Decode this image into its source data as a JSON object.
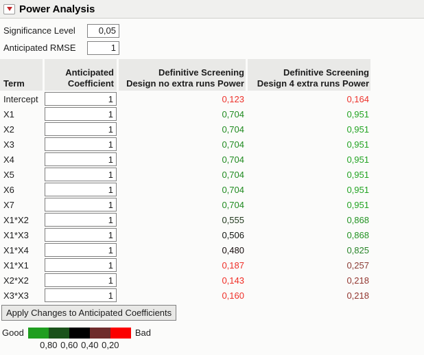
{
  "panel": {
    "title": "Power Analysis",
    "disclosure_icon": "red-triangle-down-icon"
  },
  "controls": {
    "significance": {
      "label": "Significance Level",
      "value": "0,05"
    },
    "rmse": {
      "label": "Anticipated RMSE",
      "value": "1"
    }
  },
  "table": {
    "header": {
      "term": "Term",
      "coef_line1": "Anticipated",
      "coef_line2": "Coefficient",
      "design1_line1": "Definitive Screening",
      "design1_line2": "Design no extra runs Power",
      "design2_line1": "Definitive Screening",
      "design2_line2": "Design 4 extra runs Power"
    },
    "rows": [
      {
        "term": "Intercept",
        "coefficient": "1",
        "power_no_extra": "0,123",
        "power_no_extra_color": "#ed312a",
        "power_4_extra": "0,164",
        "power_4_extra_color": "#ed312a"
      },
      {
        "term": "X1",
        "coefficient": "1",
        "power_no_extra": "0,704",
        "power_no_extra_color": "#1f8a1f",
        "power_4_extra": "0,951",
        "power_4_extra_color": "#21a321"
      },
      {
        "term": "X2",
        "coefficient": "1",
        "power_no_extra": "0,704",
        "power_no_extra_color": "#1f8a1f",
        "power_4_extra": "0,951",
        "power_4_extra_color": "#21a321"
      },
      {
        "term": "X3",
        "coefficient": "1",
        "power_no_extra": "0,704",
        "power_no_extra_color": "#1f8a1f",
        "power_4_extra": "0,951",
        "power_4_extra_color": "#21a321"
      },
      {
        "term": "X4",
        "coefficient": "1",
        "power_no_extra": "0,704",
        "power_no_extra_color": "#1f8a1f",
        "power_4_extra": "0,951",
        "power_4_extra_color": "#21a321"
      },
      {
        "term": "X5",
        "coefficient": "1",
        "power_no_extra": "0,704",
        "power_no_extra_color": "#1f8a1f",
        "power_4_extra": "0,951",
        "power_4_extra_color": "#21a321"
      },
      {
        "term": "X6",
        "coefficient": "1",
        "power_no_extra": "0,704",
        "power_no_extra_color": "#1f8a1f",
        "power_4_extra": "0,951",
        "power_4_extra_color": "#21a321"
      },
      {
        "term": "X7",
        "coefficient": "1",
        "power_no_extra": "0,704",
        "power_no_extra_color": "#1f8a1f",
        "power_4_extra": "0,951",
        "power_4_extra_color": "#21a321"
      },
      {
        "term": "X1*X2",
        "coefficient": "1",
        "power_no_extra": "0,555",
        "power_no_extra_color": "#22391e",
        "power_4_extra": "0,868",
        "power_4_extra_color": "#219221"
      },
      {
        "term": "X1*X3",
        "coefficient": "1",
        "power_no_extra": "0,506",
        "power_no_extra_color": "#101410",
        "power_4_extra": "0,868",
        "power_4_extra_color": "#219221"
      },
      {
        "term": "X1*X4",
        "coefficient": "1",
        "power_no_extra": "0,480",
        "power_no_extra_color": "#160c0c",
        "power_4_extra": "0,825",
        "power_4_extra_color": "#278327"
      },
      {
        "term": "X1*X1",
        "coefficient": "1",
        "power_no_extra": "0,187",
        "power_no_extra_color": "#ee2d26",
        "power_4_extra": "0,257",
        "power_4_extra_color": "#8a3b34"
      },
      {
        "term": "X2*X2",
        "coefficient": "1",
        "power_no_extra": "0,143",
        "power_no_extra_color": "#f12b23",
        "power_4_extra": "0,218",
        "power_4_extra_color": "#92352e"
      },
      {
        "term": "X3*X3",
        "coefficient": "1",
        "power_no_extra": "0,160",
        "power_no_extra_color": "#ef2f28",
        "power_4_extra": "0,218",
        "power_4_extra_color": "#92352e"
      }
    ]
  },
  "apply_button": {
    "label": "Apply Changes to Anticipated Coefficients"
  },
  "legend": {
    "good_label": "Good",
    "bad_label": "Bad",
    "segments": [
      "#1f9e1f",
      "#1a521a",
      "#000000",
      "#6f2b2b",
      "#fb0000"
    ],
    "ticks": [
      "0,80",
      "0,60",
      "0,40",
      "0,20"
    ]
  }
}
